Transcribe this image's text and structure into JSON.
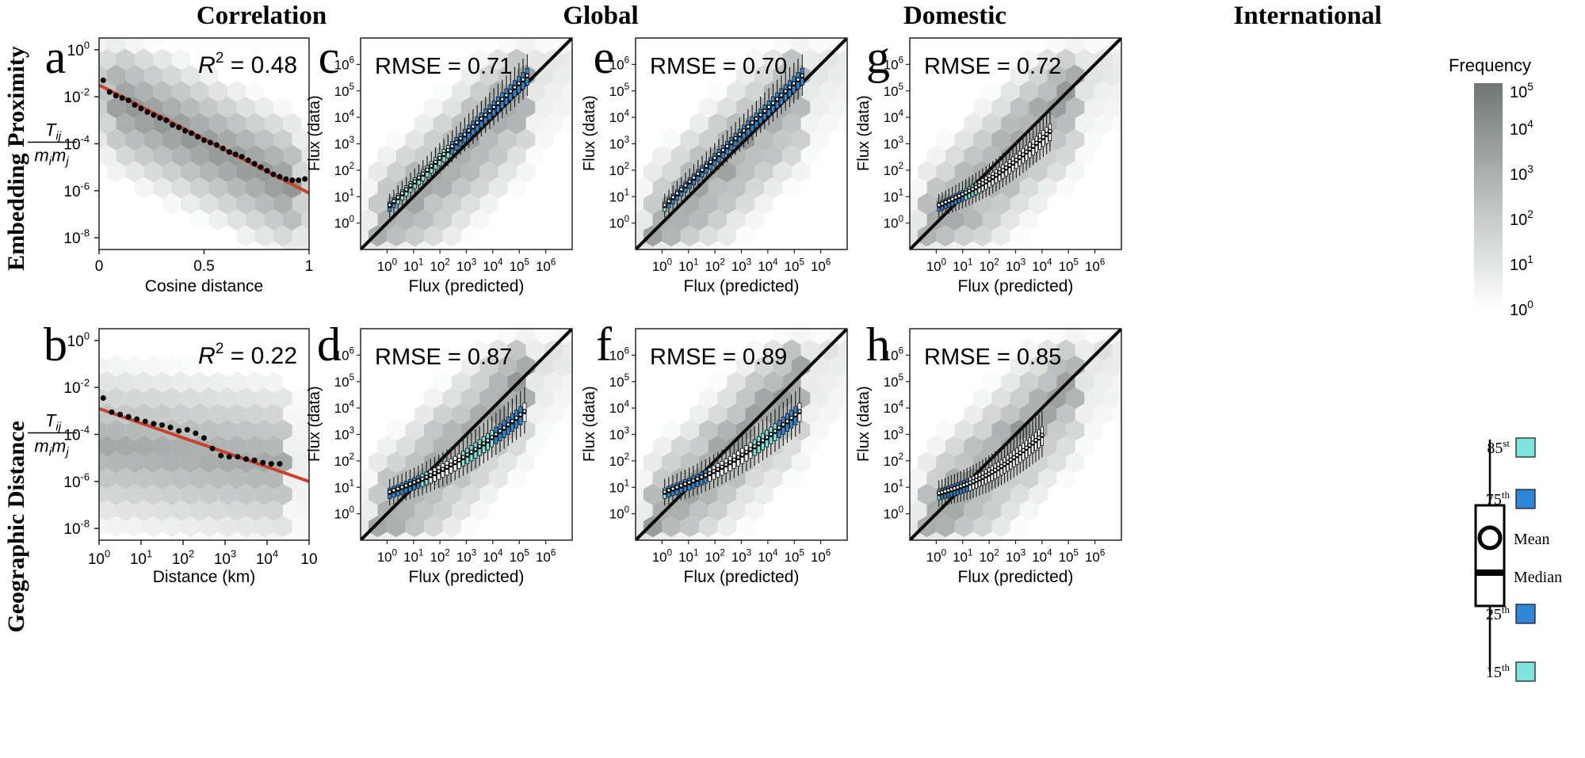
{
  "columns": [
    "Correlation",
    "Global",
    "Domestic",
    "International"
  ],
  "rows": [
    "Embedding Proximity",
    "Geographic Distance"
  ],
  "colorbar": {
    "title": "Frequency",
    "ticks": [
      "10",
      "10",
      "10",
      "10",
      "10",
      "10"
    ],
    "exps": [
      "5",
      "4",
      "3",
      "2",
      "1",
      "0"
    ],
    "dark": "#6f7675",
    "light": "#ffffff"
  },
  "legend": {
    "items": [
      {
        "base": "85",
        "sup": "st",
        "color": "#7fe5dc"
      },
      {
        "base": "75",
        "sup": "th",
        "color": "#2f86d6"
      },
      {
        "base": "Mean",
        "sup": ""
      },
      {
        "base": "Median",
        "sup": ""
      },
      {
        "base": "25",
        "sup": "th",
        "color": "#2f86d6"
      },
      {
        "base": "15",
        "sup": "th",
        "color": "#7fe5dc"
      }
    ]
  },
  "colors": {
    "fit_line": "#c8432d",
    "box_dark": "#2f86d6",
    "box_light": "#7fe5dc",
    "box_white": "#ffffff",
    "hex_dark": "#6f7675"
  },
  "chart_data": [
    {
      "panel": "a",
      "type": "scatter",
      "stat": "0.48",
      "stat_label": "R",
      "stat_sup": "2",
      "xlabel": "Cosine distance",
      "ylabel_num": "T",
      "ylabel_num_sub": "ij",
      "ylabel_den": "m",
      "ylabel_den_sub1": "i",
      "ylabel_den_sub2": "j",
      "xlim": [
        0,
        1
      ],
      "ylim_log10": [
        -8.5,
        0.5
      ],
      "xticks": [
        {
          "label": "0",
          "v": 0
        },
        {
          "label": "0.5",
          "v": 0.5
        },
        {
          "label": "1",
          "v": 1
        }
      ],
      "yticks": [
        {
          "base": "10",
          "exp": "0",
          "v": 0
        },
        {
          "base": "10",
          "exp": "-2",
          "v": -2
        },
        {
          "base": "10",
          "exp": "-4",
          "v": -4
        },
        {
          "base": "10",
          "exp": "-6",
          "v": -6
        },
        {
          "base": "10",
          "exp": "-8",
          "v": -8
        }
      ],
      "fit": {
        "x": [
          0,
          1
        ],
        "log10y": [
          -1.5,
          -6.1
        ]
      },
      "points": {
        "x": [
          0.02,
          0.05,
          0.08,
          0.11,
          0.14,
          0.17,
          0.2,
          0.23,
          0.26,
          0.29,
          0.32,
          0.35,
          0.38,
          0.41,
          0.44,
          0.47,
          0.5,
          0.53,
          0.56,
          0.59,
          0.62,
          0.65,
          0.68,
          0.71,
          0.74,
          0.77,
          0.8,
          0.83,
          0.86,
          0.89,
          0.92,
          0.95,
          0.98
        ],
        "log10y": [
          -1.3,
          -1.8,
          -1.95,
          -2.05,
          -2.15,
          -2.35,
          -2.5,
          -2.65,
          -2.78,
          -2.9,
          -3.0,
          -3.2,
          -3.3,
          -3.45,
          -3.55,
          -3.7,
          -3.85,
          -3.95,
          -4.05,
          -4.2,
          -4.35,
          -4.45,
          -4.55,
          -4.7,
          -4.85,
          -5.0,
          -5.15,
          -5.3,
          -5.4,
          -5.5,
          -5.55,
          -5.55,
          -5.5
        ]
      }
    },
    {
      "panel": "b",
      "type": "scatter",
      "stat": "0.22",
      "stat_label": "R",
      "stat_sup": "2",
      "xlabel": "Distance (km)",
      "ylabel_num": "T",
      "ylabel_num_sub": "ij",
      "ylabel_den": "m",
      "ylabel_den_sub1": "i",
      "ylabel_den_sub2": "j",
      "xlim_log10": [
        0,
        5
      ],
      "ylim_log10": [
        -8.5,
        0.5
      ],
      "xticks": [
        {
          "base": "10",
          "exp": "0",
          "v": 0
        },
        {
          "base": "10",
          "exp": "1",
          "v": 1
        },
        {
          "base": "10",
          "exp": "2",
          "v": 2
        },
        {
          "base": "10",
          "exp": "3",
          "v": 3
        },
        {
          "base": "10",
          "exp": "4",
          "v": 4
        },
        {
          "base": "10",
          "exp": "",
          "v": 5
        }
      ],
      "yticks": [
        {
          "base": "10",
          "exp": "0",
          "v": 0
        },
        {
          "base": "10",
          "exp": "-2",
          "v": -2
        },
        {
          "base": "10",
          "exp": "-4",
          "v": -4
        },
        {
          "base": "10",
          "exp": "-6",
          "v": -6
        },
        {
          "base": "10",
          "exp": "-8",
          "v": -8
        }
      ],
      "fit": {
        "x_log10": [
          0,
          5
        ],
        "log10y": [
          -2.9,
          -6.0
        ]
      },
      "points": {
        "x_log10": [
          0.1,
          0.3,
          0.5,
          0.7,
          0.9,
          1.1,
          1.3,
          1.5,
          1.7,
          1.9,
          2.1,
          2.3,
          2.5,
          2.7,
          2.9,
          3.1,
          3.3,
          3.5,
          3.7,
          3.9,
          4.1,
          4.3
        ],
        "log10y": [
          -2.45,
          -3.05,
          -3.15,
          -3.25,
          -3.35,
          -3.45,
          -3.55,
          -3.6,
          -3.7,
          -3.85,
          -3.8,
          -3.95,
          -4.15,
          -4.6,
          -4.9,
          -4.95,
          -4.95,
          -5.05,
          -5.1,
          -5.2,
          -5.25,
          -5.25
        ]
      }
    },
    {
      "panel": "c",
      "type": "box",
      "stat": "0.71",
      "stat_label": "RMSE",
      "xlabel": "Flux (predicted)",
      "ylabel": "Flux (data)",
      "xlim_log10": [
        -1,
        7
      ],
      "ylim_log10": [
        -1,
        7
      ],
      "xticks": [
        0,
        1,
        2,
        3,
        4,
        5,
        6
      ],
      "yticks": [
        0,
        1,
        2,
        3,
        4,
        5,
        6
      ],
      "boxes": {
        "log10x_start": 0.1,
        "log10x_end": 5.3,
        "count": 34,
        "median_start": 0.6,
        "median_end": 5.5,
        "curvature": 0.0,
        "spread": 0.45,
        "colors": [
          "dark",
          "dark",
          "light",
          "light",
          "light",
          "light",
          "light",
          "light",
          "light",
          "light",
          "light",
          "light",
          "light",
          "light",
          "light",
          "dark",
          "dark",
          "dark",
          "dark",
          "dark",
          "dark",
          "dark",
          "dark",
          "dark",
          "dark",
          "dark",
          "dark",
          "dark",
          "dark",
          "dark",
          "dark",
          "dark",
          "dark",
          "dark"
        ]
      }
    },
    {
      "panel": "d",
      "type": "box",
      "stat": "0.87",
      "stat_label": "RMSE",
      "xlabel": "Flux (predicted)",
      "ylabel": "Flux (data)",
      "xlim_log10": [
        -1,
        7
      ],
      "ylim_log10": [
        -1,
        7
      ],
      "xticks": [
        0,
        1,
        2,
        3,
        4,
        5,
        6
      ],
      "yticks": [
        0,
        1,
        2,
        3,
        4,
        5,
        6
      ],
      "boxes": {
        "log10x_start": 0.1,
        "log10x_end": 5.2,
        "count": 34,
        "median_start": 0.75,
        "median_end": 3.8,
        "curvature": 0.6,
        "spread": 0.5,
        "colors": [
          "dark",
          "dark",
          "dark",
          "dark",
          "dark",
          "dark",
          "dark",
          "dark",
          "light",
          "light",
          "white",
          "white",
          "white",
          "white",
          "white",
          "white",
          "white",
          "white",
          "light",
          "light",
          "light",
          "light",
          "light",
          "light",
          "light",
          "light",
          "dark",
          "dark",
          "dark",
          "dark",
          "dark",
          "dark",
          "dark",
          "white"
        ]
      }
    },
    {
      "panel": "e",
      "type": "box",
      "stat": "0.70",
      "stat_label": "RMSE",
      "xlabel": "Flux (predicted)",
      "ylabel": "Flux (data)",
      "xlim_log10": [
        -1,
        7
      ],
      "ylim_log10": [
        -1,
        7
      ],
      "xticks": [
        0,
        1,
        2,
        3,
        4,
        5,
        6
      ],
      "yticks": [
        0,
        1,
        2,
        3,
        4,
        5,
        6
      ],
      "boxes": {
        "log10x_start": 0.1,
        "log10x_end": 5.3,
        "count": 34,
        "median_start": 0.6,
        "median_end": 5.5,
        "curvature": 0.0,
        "spread": 0.45,
        "colors": [
          "light",
          "dark",
          "dark",
          "dark",
          "dark",
          "dark",
          "dark",
          "dark",
          "dark",
          "dark",
          "dark",
          "dark",
          "dark",
          "dark",
          "dark",
          "dark",
          "dark",
          "dark",
          "dark",
          "dark",
          "dark",
          "dark",
          "dark",
          "dark",
          "dark",
          "dark",
          "dark",
          "dark",
          "dark",
          "dark",
          "dark",
          "dark",
          "dark",
          "dark"
        ]
      }
    },
    {
      "panel": "f",
      "type": "box",
      "stat": "0.89",
      "stat_label": "RMSE",
      "xlabel": "Flux (predicted)",
      "ylabel": "Flux (data)",
      "xlim_log10": [
        -1,
        7
      ],
      "ylim_log10": [
        -1,
        7
      ],
      "xticks": [
        0,
        1,
        2,
        3,
        4,
        5,
        6
      ],
      "yticks": [
        0,
        1,
        2,
        3,
        4,
        5,
        6
      ],
      "boxes": {
        "log10x_start": 0.1,
        "log10x_end": 5.2,
        "count": 34,
        "median_start": 0.75,
        "median_end": 3.8,
        "curvature": 0.6,
        "spread": 0.5,
        "colors": [
          "light",
          "dark",
          "dark",
          "dark",
          "dark",
          "dark",
          "dark",
          "dark",
          "dark",
          "dark",
          "dark",
          "white",
          "white",
          "white",
          "white",
          "white",
          "white",
          "white",
          "white",
          "white",
          "white",
          "white",
          "light",
          "light",
          "light",
          "light",
          "light",
          "light",
          "dark",
          "dark",
          "dark",
          "dark",
          "dark",
          "white"
        ]
      }
    },
    {
      "panel": "g",
      "type": "box",
      "stat": "0.72",
      "stat_label": "RMSE",
      "xlabel": "Flux (predicted)",
      "ylabel": "Flux (data)",
      "xlim_log10": [
        -1,
        7
      ],
      "ylim_log10": [
        -1,
        7
      ],
      "xticks": [
        0,
        1,
        2,
        3,
        4,
        5,
        6
      ],
      "yticks": [
        0,
        1,
        2,
        3,
        4,
        5,
        6
      ],
      "boxes": {
        "log10x_start": 0.1,
        "log10x_end": 4.3,
        "count": 34,
        "median_start": 0.6,
        "median_end": 3.4,
        "curvature": 0.5,
        "spread": 0.45,
        "colors": [
          "dark",
          "dark",
          "dark",
          "dark",
          "dark",
          "dark",
          "dark",
          "dark",
          "light",
          "light",
          "light",
          "light",
          "white",
          "white",
          "white",
          "white",
          "white",
          "white",
          "white",
          "white",
          "white",
          "white",
          "white",
          "white",
          "white",
          "white",
          "white",
          "white",
          "white",
          "white",
          "white",
          "white",
          "white",
          "white"
        ]
      }
    },
    {
      "panel": "h",
      "type": "box",
      "stat": "0.85",
      "stat_label": "RMSE",
      "xlabel": "Flux (predicted)",
      "ylabel": "Flux (data)",
      "xlim_log10": [
        -1,
        7
      ],
      "ylim_log10": [
        -1,
        7
      ],
      "xticks": [
        0,
        1,
        2,
        3,
        4,
        5,
        6
      ],
      "yticks": [
        0,
        1,
        2,
        3,
        4,
        5,
        6
      ],
      "boxes": {
        "log10x_start": 0.1,
        "log10x_end": 4.0,
        "count": 34,
        "median_start": 0.7,
        "median_end": 2.9,
        "curvature": 0.55,
        "spread": 0.5,
        "colors": [
          "light",
          "dark",
          "dark",
          "dark",
          "dark",
          "dark",
          "dark",
          "dark",
          "dark",
          "dark",
          "white",
          "white",
          "white",
          "white",
          "white",
          "white",
          "white",
          "white",
          "white",
          "white",
          "white",
          "white",
          "white",
          "white",
          "white",
          "white",
          "white",
          "white",
          "white",
          "white",
          "white",
          "white",
          "white",
          "white"
        ]
      }
    }
  ]
}
